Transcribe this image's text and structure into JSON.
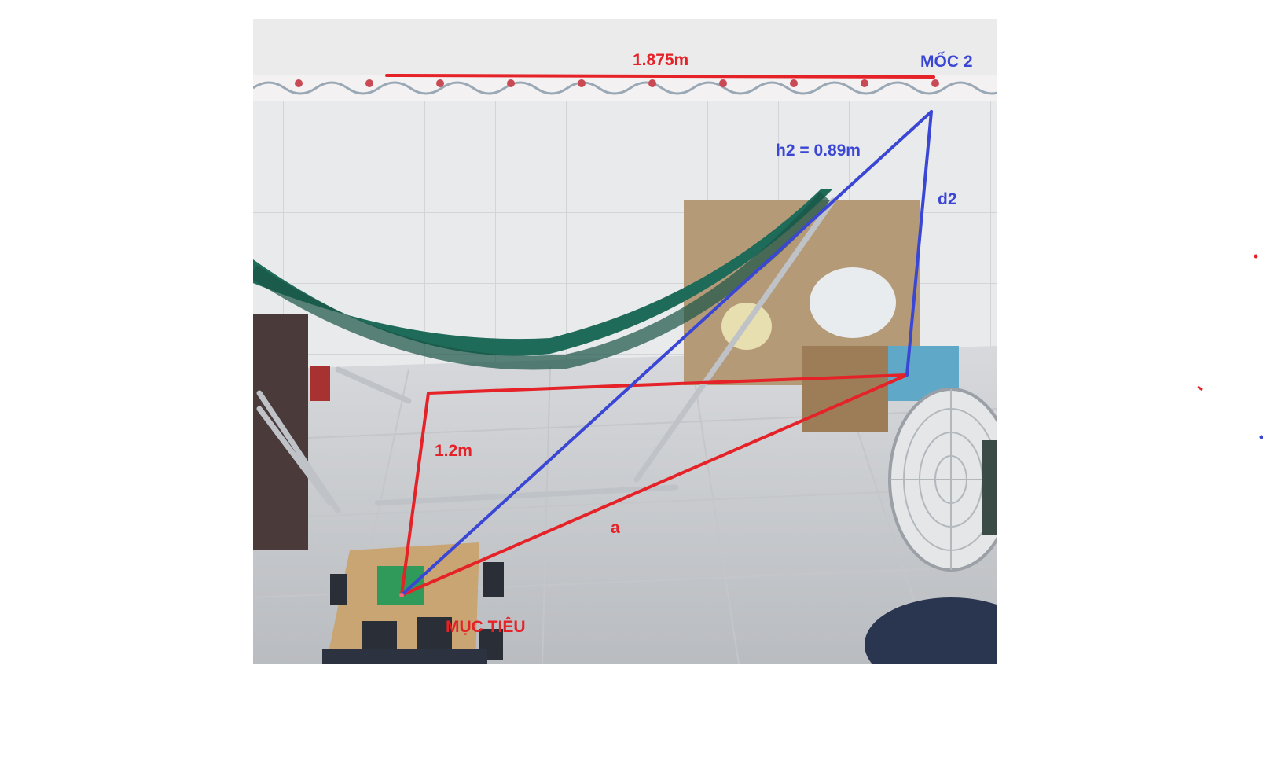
{
  "labels": {
    "top_distance": "1.875m",
    "anchor": "MỐC 2",
    "hypotenuse": "h2 = 0.89m",
    "side_d": "d2",
    "side_left": "1.2m",
    "side_a": "a",
    "target": "MỤC TIÊU"
  },
  "colors": {
    "red_annotation": "#e52228",
    "blue_annotation": "#3a46d4",
    "background": "#ffffff"
  }
}
